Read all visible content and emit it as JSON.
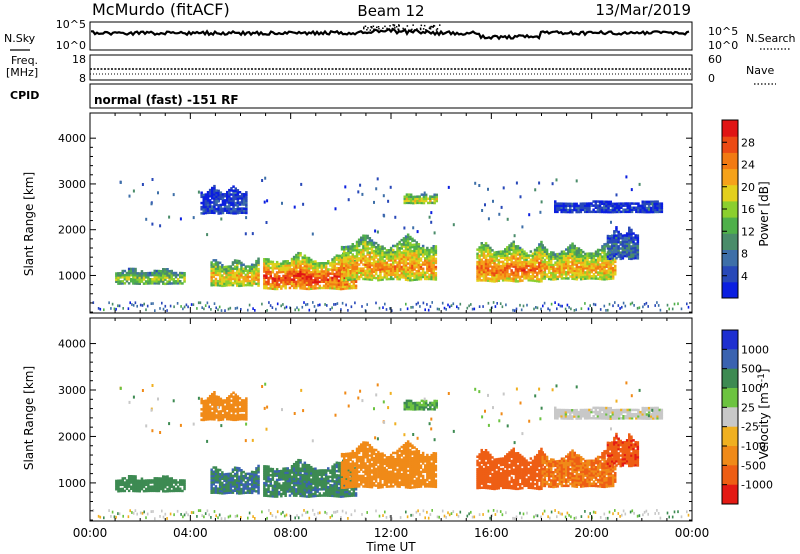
{
  "header": {
    "station": "McMurdo (fitACF)",
    "beam": "Beam 12",
    "date": "13/Mar/2019"
  },
  "noise_panel": {
    "left_label": "N.Sky",
    "right_label": "N.Search",
    "left_ticks": [
      "10^5",
      "10^0"
    ],
    "right_ticks": [
      "10^5",
      "10^0"
    ]
  },
  "freq_panel": {
    "left_label_1": "Freq.",
    "left_label_2": "[MHz]",
    "right_label": "Nave",
    "left_ticks": [
      "18",
      "8"
    ],
    "right_ticks": [
      "60",
      "0"
    ]
  },
  "cpid_panel": {
    "label": "CPID",
    "text": "normal (fast) -151 RF"
  },
  "x_axis": {
    "label": "Time UT",
    "ticks": [
      "00:00",
      "04:00",
      "08:00",
      "12:00",
      "16:00",
      "20:00",
      "00:00"
    ]
  },
  "chart_data": [
    {
      "type": "heatmap",
      "title": "",
      "xlabel": "Time UT",
      "ylabel": "Slant Range [km]",
      "xlim": [
        0,
        24
      ],
      "ylim": [
        180,
        4550
      ],
      "y_ticks": [
        "1000",
        "2000",
        "3000",
        "4000"
      ],
      "colorbar": {
        "label": "Power [dB]",
        "ticks": [
          "4",
          "8",
          "12",
          "16",
          "20",
          "24",
          "28"
        ],
        "range": [
          0,
          32
        ],
        "colors": [
          "#0b1fe0",
          "#2848b8",
          "#3e6fa8",
          "#4a8c6a",
          "#4fb04a",
          "#8bcf2e",
          "#e3d01c",
          "#f5a21a",
          "#f27a12",
          "#ec4a14",
          "#e01414"
        ]
      },
      "regions": [
        {
          "t0": 1.0,
          "t1": 3.8,
          "r0": 780,
          "r1": 1180,
          "level": 0.45
        },
        {
          "t0": 4.8,
          "t1": 6.7,
          "r0": 720,
          "r1": 1400,
          "level": 0.6
        },
        {
          "t0": 6.9,
          "t1": 10.6,
          "r0": 640,
          "r1": 1550,
          "level": 0.78
        },
        {
          "t0": 10.0,
          "t1": 13.8,
          "r0": 820,
          "r1": 1950,
          "level": 0.65
        },
        {
          "t0": 15.4,
          "t1": 18.0,
          "r0": 800,
          "r1": 1800,
          "level": 0.72
        },
        {
          "t0": 18.0,
          "t1": 20.9,
          "r0": 850,
          "r1": 1750,
          "level": 0.62
        },
        {
          "t0": 4.4,
          "t1": 6.2,
          "r0": 2300,
          "r1": 3000,
          "level": 0.12
        },
        {
          "t0": 12.5,
          "t1": 13.8,
          "r0": 2550,
          "r1": 2800,
          "level": 0.55
        },
        {
          "t0": 18.5,
          "t1": 22.8,
          "r0": 2350,
          "r1": 2650,
          "level": 0.1
        },
        {
          "t0": 20.6,
          "t1": 21.8,
          "r0": 1300,
          "r1": 2100,
          "level": 0.2
        }
      ]
    },
    {
      "type": "heatmap",
      "title": "",
      "xlabel": "Time UT",
      "ylabel": "Slant Range [km]",
      "xlim": [
        0,
        24
      ],
      "ylim": [
        180,
        4550
      ],
      "y_ticks": [
        "1000",
        "2000",
        "3000",
        "4000"
      ],
      "colorbar": {
        "label": "Velocity [m s^-1]",
        "ticks": [
          "1000",
          "500",
          "100",
          "25",
          "-25",
          "-100",
          "-500",
          "-1000"
        ],
        "range": [
          -1000,
          1000
        ],
        "colors": [
          "#1e2fd0",
          "#3a63b0",
          "#3d8a52",
          "#6cc340",
          "#c8c8c8",
          "#f0b020",
          "#f08a18",
          "#ee5e14",
          "#e41a14"
        ]
      },
      "regions": [
        {
          "t0": 1.0,
          "t1": 3.8,
          "r0": 780,
          "r1": 1180,
          "value": 110
        },
        {
          "t0": 4.8,
          "t1": 6.7,
          "r0": 720,
          "r1": 1400,
          "value": 300
        },
        {
          "t0": 6.9,
          "t1": 10.6,
          "r0": 640,
          "r1": 1550,
          "value": 250
        },
        {
          "t0": 10.0,
          "t1": 13.8,
          "r0": 820,
          "r1": 1950,
          "value": -150
        },
        {
          "t0": 15.4,
          "t1": 18.0,
          "r0": 800,
          "r1": 1800,
          "value": -500
        },
        {
          "t0": 18.0,
          "t1": 20.9,
          "r0": 850,
          "r1": 1750,
          "value": -300
        },
        {
          "t0": 4.4,
          "t1": 6.2,
          "r0": 2300,
          "r1": 3000,
          "value": -120
        },
        {
          "t0": 12.5,
          "t1": 13.8,
          "r0": 2550,
          "r1": 2800,
          "value": 60
        },
        {
          "t0": 18.5,
          "t1": 22.8,
          "r0": 2350,
          "r1": 2650,
          "value": 0
        },
        {
          "t0": 20.6,
          "t1": 21.8,
          "r0": 1300,
          "r1": 2100,
          "value": -600
        }
      ]
    }
  ]
}
